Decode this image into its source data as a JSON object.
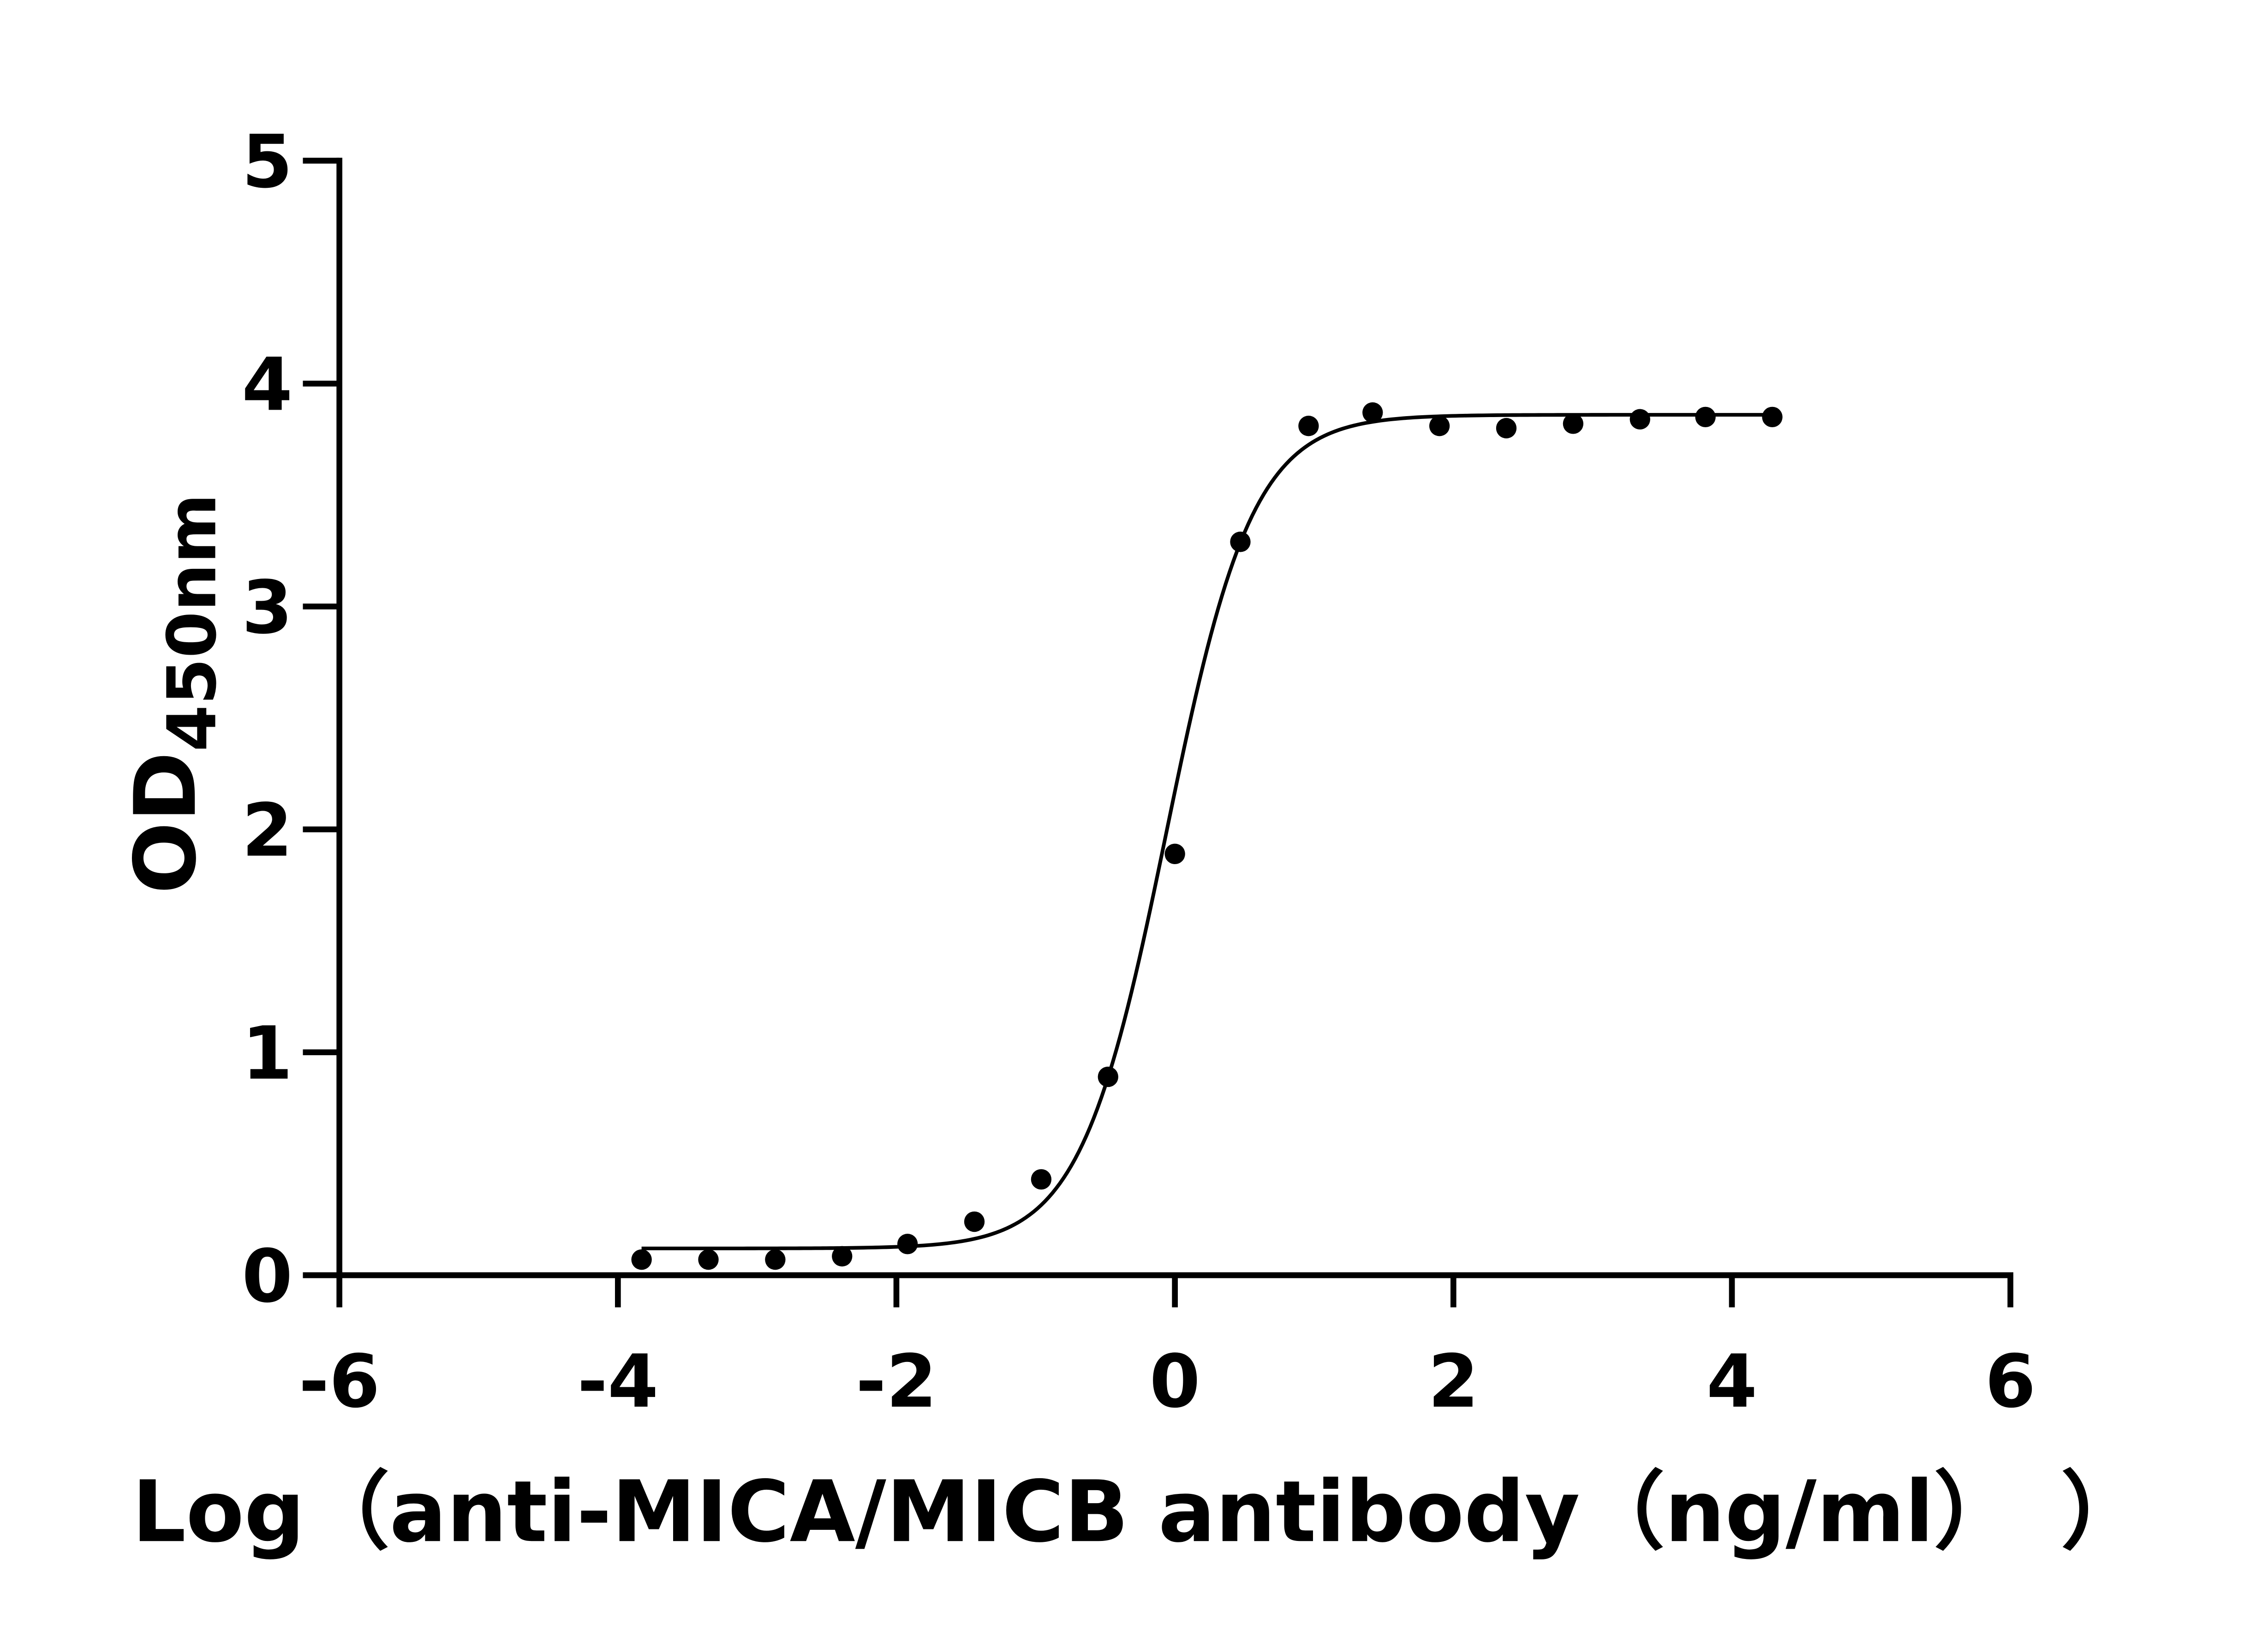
{
  "chart_data": {
    "type": "scatter",
    "title": "",
    "xlabel": "Log（anti-MICA/MICB antibody（ng/ml）　）",
    "ylabel": "OD",
    "ylabel_subscript": "450nm",
    "xlim": [
      -6,
      6
    ],
    "ylim": [
      0,
      5
    ],
    "xticks": [
      -6,
      -4,
      -2,
      0,
      2,
      4,
      6
    ],
    "yticks": [
      0,
      1,
      2,
      3,
      4,
      5
    ],
    "xtick_labels": [
      "-6",
      "-4",
      "-2",
      "0",
      "2",
      "4",
      "6"
    ],
    "ytick_labels": [
      "0",
      "1",
      "2",
      "3",
      "4",
      "5"
    ],
    "grid": false,
    "series": [
      {
        "x": [
          -3.83,
          -3.35,
          -2.87,
          -2.39,
          -1.92,
          -1.44,
          -0.96,
          -0.48,
          0.0,
          0.47,
          0.96,
          1.42,
          1.9,
          2.38,
          2.86,
          3.34,
          3.81,
          4.29
        ],
        "y": [
          0.07,
          0.07,
          0.07,
          0.085,
          0.14,
          0.24,
          0.43,
          0.89,
          1.89,
          3.29,
          3.81,
          3.87,
          3.81,
          3.8,
          3.82,
          3.84,
          3.85,
          3.85
        ],
        "marker": "filled-circle",
        "color": "#000000"
      }
    ],
    "fit": {
      "model": "four-parameter logistic",
      "bottom": 0.12,
      "top": 3.86,
      "log_ec50": -0.06,
      "hill_slope": 1.4,
      "x_range": [
        -3.83,
        4.29
      ],
      "color": "#000000"
    }
  }
}
